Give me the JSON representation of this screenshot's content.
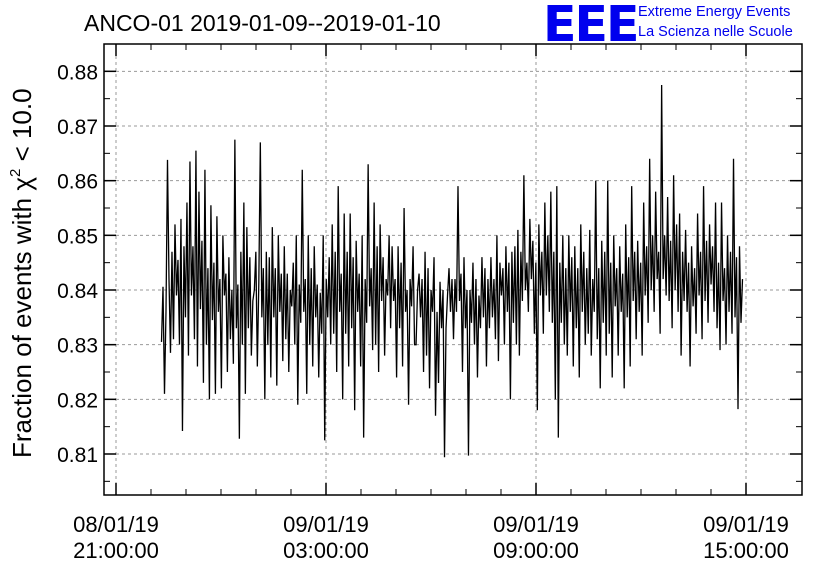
{
  "header": {
    "title": "ANCO-01 2019-01-09--2019-01-10",
    "logo_text": "EEE",
    "logo_line1": "Extreme Energy Events",
    "logo_line2": "La Scienza nelle Scuole",
    "logo_color": "#0000ee"
  },
  "chart_data": {
    "type": "line",
    "title": "ANCO-01 2019-01-09--2019-01-10",
    "ylabel_prefix": "Fraction of events with ",
    "ylabel_symbol": "χ",
    "ylabel_superscript": "2",
    "ylabel_suffix": " < 10.0",
    "xlabel": "",
    "ylim": [
      0.8025,
      0.885
    ],
    "xlim_hours": [
      20.0,
      38.5
    ],
    "grid": true,
    "line_color": "#000000",
    "y_ticks": [
      0.81,
      0.82,
      0.83,
      0.84,
      0.85,
      0.86,
      0.87,
      0.88
    ],
    "y_tick_labels": [
      "0.81",
      "0.82",
      "0.83",
      "0.84",
      "0.85",
      "0.86",
      "0.87",
      "0.88"
    ],
    "x_ticks": [
      {
        "hour": 21,
        "line1": "08/01/19",
        "line2": "21:00:00"
      },
      {
        "hour": 27,
        "line1": "09/01/19",
        "line2": "03:00:00"
      },
      {
        "hour": 33,
        "line1": "09/01/19",
        "line2": "09:00:00"
      },
      {
        "hour": 39,
        "line1": "09/01/19",
        "line2": "15:00:00"
      }
    ],
    "series": [
      {
        "x_start_hour": 22.3,
        "x_end_hour": 38.9,
        "values": [
          0.8305,
          0.8406,
          0.821,
          0.836,
          0.8638,
          0.842,
          0.8285,
          0.847,
          0.831,
          0.852,
          0.839,
          0.8455,
          0.83,
          0.853,
          0.8142,
          0.848,
          0.835,
          0.856,
          0.828,
          0.8635,
          0.839,
          0.848,
          0.831,
          0.8655,
          0.826,
          0.858,
          0.8365,
          0.849,
          0.823,
          0.862,
          0.83,
          0.844,
          0.82,
          0.8555,
          0.8345,
          0.845,
          0.821,
          0.8535,
          0.836,
          0.842,
          0.822,
          0.85,
          0.839,
          0.843,
          0.825,
          0.846,
          0.831,
          0.84,
          0.8265,
          0.8675,
          0.833,
          0.841,
          0.8128,
          0.847,
          0.83,
          0.856,
          0.821,
          0.8515,
          0.833,
          0.846,
          0.828,
          0.838,
          0.84,
          0.847,
          0.826,
          0.8415,
          0.867,
          0.835,
          0.844,
          0.82,
          0.847,
          0.83,
          0.846,
          0.824,
          0.8515,
          0.835,
          0.844,
          0.8225,
          0.85,
          0.836,
          0.843,
          0.827,
          0.848,
          0.831,
          0.843,
          0.825,
          0.84,
          0.837,
          0.845,
          0.83,
          0.85,
          0.819,
          0.841,
          0.834,
          0.862,
          0.836,
          0.842,
          0.821,
          0.85,
          0.83,
          0.844,
          0.826,
          0.848,
          0.835,
          0.841,
          0.824,
          0.8395,
          0.832,
          0.85,
          0.8125,
          0.842,
          0.835,
          0.846,
          0.83,
          0.852,
          0.832,
          0.847,
          0.825,
          0.859,
          0.836,
          0.843,
          0.82,
          0.854,
          0.832,
          0.847,
          0.826,
          0.854,
          0.833,
          0.846,
          0.818,
          0.849,
          0.836,
          0.843,
          0.826,
          0.85,
          0.813,
          0.842,
          0.834,
          0.863,
          0.837,
          0.844,
          0.829,
          0.856,
          0.83,
          0.848,
          0.825,
          0.852,
          0.838,
          0.846,
          0.828,
          0.842,
          0.839,
          0.85,
          0.833,
          0.848,
          0.838,
          0.842,
          0.824,
          0.848,
          0.833,
          0.845,
          0.826,
          0.855,
          0.836,
          0.84,
          0.819,
          0.842,
          0.837,
          0.848,
          0.83,
          0.83,
          0.84,
          0.843,
          0.835,
          0.842,
          0.825,
          0.847,
          0.828,
          0.844,
          0.822,
          0.84,
          0.836,
          0.846,
          0.817,
          0.836,
          0.823,
          0.8415,
          0.833,
          0.84,
          0.8094,
          0.833,
          0.839,
          0.844,
          0.836,
          0.842,
          0.831,
          0.842,
          0.836,
          0.859,
          0.838,
          0.843,
          0.825,
          0.846,
          0.833,
          0.84,
          0.8097,
          0.84,
          0.834,
          0.845,
          0.83,
          0.842,
          0.824,
          0.839,
          0.833,
          0.846,
          0.835,
          0.844,
          0.826,
          0.842,
          0.833,
          0.846,
          0.835,
          0.842,
          0.831,
          0.85,
          0.827,
          0.845,
          0.839,
          0.844,
          0.83,
          0.848,
          0.836,
          0.845,
          0.82,
          0.847,
          0.834,
          0.848,
          0.83,
          0.851,
          0.828,
          0.847,
          0.838,
          0.861,
          0.84,
          0.845,
          0.836,
          0.853,
          0.842,
          0.849,
          0.832,
          0.845,
          0.818,
          0.852,
          0.839,
          0.847,
          0.832,
          0.856,
          0.839,
          0.85,
          0.836,
          0.858,
          0.834,
          0.847,
          0.82,
          0.859,
          0.813,
          0.845,
          0.834,
          0.85,
          0.83,
          0.844,
          0.828,
          0.85,
          0.836,
          0.846,
          0.826,
          0.848,
          0.833,
          0.844,
          0.824,
          0.852,
          0.836,
          0.847,
          0.83,
          0.844,
          0.832,
          0.851,
          0.828,
          0.842,
          0.836,
          0.86,
          0.831,
          0.844,
          0.822,
          0.849,
          0.834,
          0.847,
          0.828,
          0.86,
          0.832,
          0.845,
          0.824,
          0.85,
          0.837,
          0.844,
          0.828,
          0.848,
          0.836,
          0.843,
          0.822,
          0.852,
          0.835,
          0.846,
          0.826,
          0.859,
          0.838,
          0.847,
          0.831,
          0.849,
          0.836,
          0.845,
          0.828,
          0.856,
          0.839,
          0.848,
          0.834,
          0.864,
          0.84,
          0.85,
          0.836,
          0.858,
          0.842,
          0.847,
          0.832,
          0.8775,
          0.842,
          0.85,
          0.839,
          0.857,
          0.838,
          0.849,
          0.833,
          0.861,
          0.84,
          0.852,
          0.836,
          0.854,
          0.828,
          0.847,
          0.838,
          0.851,
          0.836,
          0.845,
          0.826,
          0.848,
          0.837,
          0.844,
          0.832,
          0.854,
          0.839,
          0.847,
          0.831,
          0.859,
          0.838,
          0.849,
          0.834,
          0.852,
          0.841,
          0.848,
          0.836,
          0.856,
          0.833,
          0.845,
          0.829,
          0.856,
          0.838,
          0.844,
          0.83,
          0.85,
          0.836,
          0.847,
          0.832,
          0.864,
          0.835,
          0.846,
          0.8182,
          0.848,
          0.834,
          0.842
        ]
      }
    ]
  }
}
